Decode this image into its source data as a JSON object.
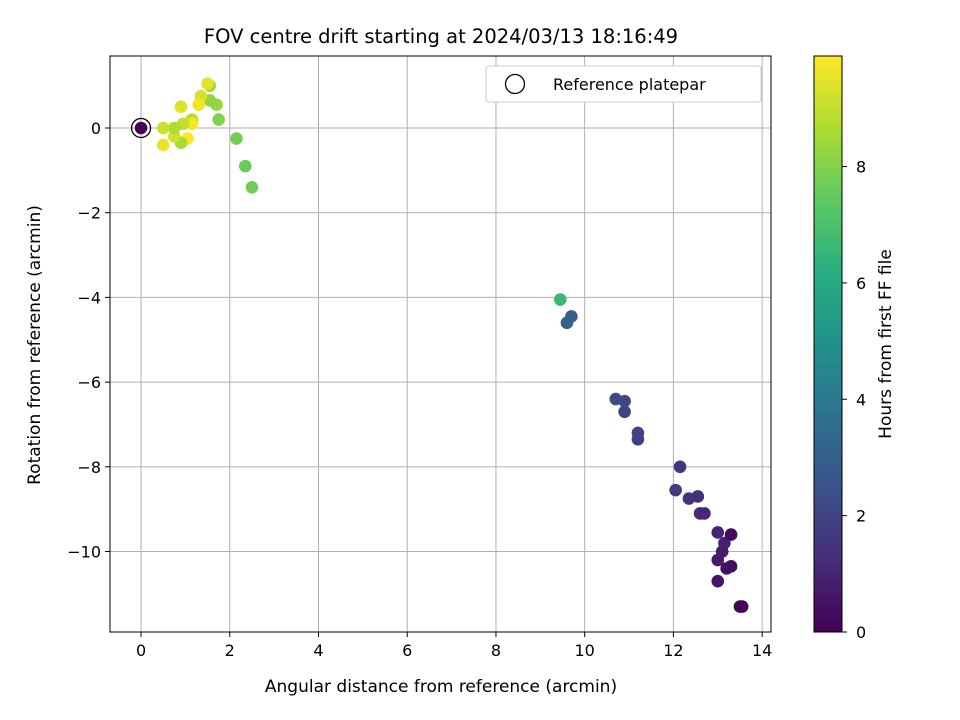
{
  "chart_data": {
    "type": "scatter",
    "title": "FOV centre drift starting at 2024/03/13 18:16:49",
    "xlabel": "Angular distance from reference (arcmin)",
    "ylabel": "Rotation from reference (arcmin)",
    "xlim": [
      -0.7,
      14.2
    ],
    "ylim": [
      -11.9,
      1.7
    ],
    "x_ticks": [
      0,
      2,
      4,
      6,
      8,
      10,
      12,
      14
    ],
    "y_ticks": [
      0,
      -2,
      -4,
      -6,
      -8,
      -10
    ],
    "grid": true,
    "legend": {
      "position": "upper right",
      "entries": [
        "Reference platepar"
      ]
    },
    "colorbar": {
      "label": "Hours from first FF file",
      "colormap": "viridis",
      "range": [
        0,
        9.9
      ],
      "ticks": [
        0,
        2,
        4,
        6,
        8
      ]
    },
    "reference_point": {
      "x": 0,
      "y": 0
    },
    "points": [
      {
        "x": 13.55,
        "y": -11.3,
        "c": 0.05
      },
      {
        "x": 13.5,
        "y": -11.3,
        "c": 0.1
      },
      {
        "x": 13.0,
        "y": -10.7,
        "c": 0.6
      },
      {
        "x": 13.2,
        "y": -10.4,
        "c": 0.45
      },
      {
        "x": 13.3,
        "y": -10.35,
        "c": 0.4
      },
      {
        "x": 13.0,
        "y": -10.2,
        "c": 0.7
      },
      {
        "x": 13.1,
        "y": -10.0,
        "c": 0.8
      },
      {
        "x": 13.15,
        "y": -9.8,
        "c": 0.9
      },
      {
        "x": 13.3,
        "y": -9.6,
        "c": 0.3
      },
      {
        "x": 13.0,
        "y": -9.55,
        "c": 1.0
      },
      {
        "x": 12.6,
        "y": -9.1,
        "c": 1.2
      },
      {
        "x": 12.7,
        "y": -9.1,
        "c": 1.1
      },
      {
        "x": 12.55,
        "y": -8.7,
        "c": 1.3
      },
      {
        "x": 12.35,
        "y": -8.75,
        "c": 1.4
      },
      {
        "x": 12.05,
        "y": -8.55,
        "c": 1.7
      },
      {
        "x": 12.15,
        "y": -8.0,
        "c": 1.5
      },
      {
        "x": 11.2,
        "y": -7.35,
        "c": 1.8
      },
      {
        "x": 11.2,
        "y": -7.2,
        "c": 1.9
      },
      {
        "x": 10.9,
        "y": -6.7,
        "c": 2.0
      },
      {
        "x": 10.9,
        "y": -6.45,
        "c": 2.05
      },
      {
        "x": 10.7,
        "y": -6.4,
        "c": 2.2
      },
      {
        "x": 9.7,
        "y": -4.45,
        "c": 3.0
      },
      {
        "x": 9.6,
        "y": -4.6,
        "c": 3.1
      },
      {
        "x": 9.45,
        "y": -4.05,
        "c": 6.6
      },
      {
        "x": 2.5,
        "y": -1.4,
        "c": 7.7
      },
      {
        "x": 2.35,
        "y": -0.9,
        "c": 7.6
      },
      {
        "x": 2.15,
        "y": -0.25,
        "c": 7.8
      },
      {
        "x": 1.75,
        "y": 0.2,
        "c": 8.0
      },
      {
        "x": 1.7,
        "y": 0.55,
        "c": 8.3
      },
      {
        "x": 1.55,
        "y": 0.65,
        "c": 8.2
      },
      {
        "x": 1.55,
        "y": 1.0,
        "c": 8.5
      },
      {
        "x": 1.5,
        "y": 1.05,
        "c": 9.5
      },
      {
        "x": 1.35,
        "y": 0.75,
        "c": 9.3
      },
      {
        "x": 1.3,
        "y": 0.55,
        "c": 9.7
      },
      {
        "x": 1.15,
        "y": 0.2,
        "c": 8.8
      },
      {
        "x": 1.15,
        "y": 0.1,
        "c": 9.8
      },
      {
        "x": 0.95,
        "y": 0.1,
        "c": 9.0
      },
      {
        "x": 0.9,
        "y": 0.5,
        "c": 9.4
      },
      {
        "x": 1.05,
        "y": -0.25,
        "c": 9.9
      },
      {
        "x": 0.9,
        "y": -0.35,
        "c": 8.6
      },
      {
        "x": 0.75,
        "y": -0.2,
        "c": 9.2
      },
      {
        "x": 0.75,
        "y": 0.0,
        "c": 8.7
      },
      {
        "x": 0.5,
        "y": 0.0,
        "c": 9.1
      },
      {
        "x": 0.5,
        "y": -0.4,
        "c": 9.6
      },
      {
        "x": 0.0,
        "y": 0.0,
        "c": 0.0
      }
    ]
  }
}
